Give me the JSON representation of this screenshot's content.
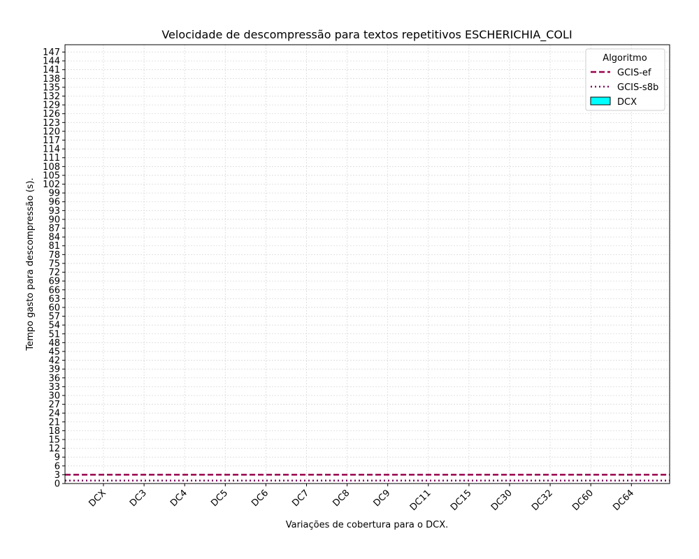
{
  "chart_data": {
    "type": "bar",
    "title": "Velocidade de descompressão para textos repetitivos ESCHERICHIA_COLI",
    "xlabel": "Variações de cobertura para o DCX.",
    "ylabel": "Tempo gasto para descompressão (s).",
    "categories": [
      "DCX",
      "DC3",
      "DC4",
      "DC5",
      "DC6",
      "DC7",
      "DC8",
      "DC9",
      "DC11",
      "DC15",
      "DC30",
      "DC32",
      "DC60",
      "DC64"
    ],
    "series": [
      {
        "name": "DCX",
        "values": [
          0,
          0,
          0,
          0,
          0,
          0,
          0,
          0,
          0,
          0,
          0,
          0,
          0,
          0
        ],
        "color": "#00ffff"
      }
    ],
    "reference_lines": [
      {
        "name": "GCIS-ef",
        "value": 3,
        "style": "dashed",
        "color": "#99004c"
      },
      {
        "name": "GCIS-s8b",
        "value": 1,
        "style": "dotted",
        "color": "#800060"
      }
    ],
    "ylim": [
      0,
      149.5
    ],
    "yticks_step": 3,
    "yticks_max": 147,
    "grid": true,
    "legend": {
      "title": "Algoritmo",
      "placement": "top-right"
    }
  }
}
